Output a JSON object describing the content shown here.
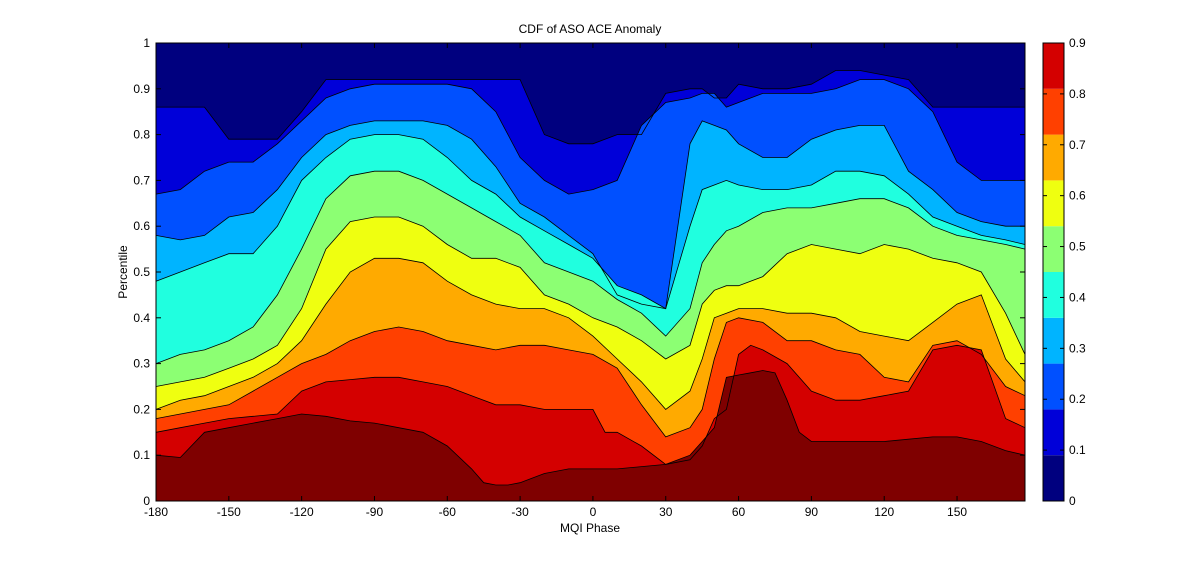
{
  "chart_data": {
    "type": "contourf",
    "title": "CDF of ASO ACE Anomaly",
    "xlabel": "MQI Phase",
    "ylabel": "Percentile",
    "xlim": [
      -180,
      178
    ],
    "ylim": [
      0,
      1
    ],
    "x_ticks": [
      "-180",
      "-150",
      "-120",
      "-90",
      "-60",
      "-30",
      "0",
      "30",
      "60",
      "90",
      "120",
      "150"
    ],
    "x_tick_values": [
      -180,
      -150,
      -120,
      -90,
      -60,
      -30,
      0,
      30,
      60,
      90,
      120,
      150
    ],
    "y_ticks": [
      "0",
      "0.1",
      "0.2",
      "0.3",
      "0.4",
      "0.5",
      "0.6",
      "0.7",
      "0.8",
      "0.9",
      "1"
    ],
    "y_tick_values": [
      0,
      0.1,
      0.2,
      0.3,
      0.4,
      0.5,
      0.6,
      0.7,
      0.8,
      0.9,
      1
    ],
    "colorbar": {
      "ticks": [
        "0",
        "0.1",
        "0.2",
        "0.3",
        "0.4",
        "0.5",
        "0.6",
        "0.7",
        "0.8",
        "0.9"
      ],
      "tick_values": [
        0,
        0.1,
        0.2,
        0.3,
        0.4,
        0.5,
        0.6,
        0.7,
        0.8,
        0.9
      ],
      "range": [
        0,
        0.9
      ],
      "colormap": "jet",
      "position": "right"
    },
    "levels": [
      {
        "value": 0.0,
        "color": "#00007f"
      },
      {
        "value": 0.1,
        "color": "#0000d9"
      },
      {
        "value": 0.2,
        "color": "#0050ff"
      },
      {
        "value": 0.3,
        "color": "#00b4ff"
      },
      {
        "value": 0.4,
        "color": "#20ffdf"
      },
      {
        "value": 0.5,
        "color": "#8cff73"
      },
      {
        "value": 0.6,
        "color": "#efff10"
      },
      {
        "value": 0.7,
        "color": "#ffaa00"
      },
      {
        "value": 0.8,
        "color": "#ff4000"
      },
      {
        "value": 0.9,
        "color": "#d40000"
      },
      {
        "value": 1.0,
        "color": "#7f0000"
      }
    ],
    "contours": [
      {
        "level": 0.1,
        "x": [
          -180,
          -170,
          -160,
          -150,
          -140,
          -130,
          -120,
          -110,
          -100,
          -90,
          -80,
          -70,
          -60,
          -50,
          -45,
          -40,
          -35,
          -30,
          -25,
          -20,
          -10,
          0,
          10,
          20,
          30,
          40,
          45,
          50,
          55,
          60,
          65,
          70,
          75,
          80,
          85,
          90,
          100,
          110,
          120,
          130,
          140,
          150,
          160,
          170,
          178
        ],
        "y": [
          0.1,
          0.095,
          0.15,
          0.16,
          0.17,
          0.18,
          0.19,
          0.185,
          0.175,
          0.17,
          0.16,
          0.15,
          0.12,
          0.07,
          0.04,
          0.035,
          0.035,
          0.04,
          0.05,
          0.06,
          0.07,
          0.07,
          0.07,
          0.075,
          0.08,
          0.1,
          0.13,
          0.16,
          0.27,
          0.275,
          0.28,
          0.285,
          0.28,
          0.22,
          0.15,
          0.13,
          0.13,
          0.13,
          0.13,
          0.135,
          0.14,
          0.14,
          0.13,
          0.11,
          0.1
        ]
      },
      {
        "level": 0.2,
        "x": [
          -180,
          -170,
          -160,
          -150,
          -140,
          -130,
          -120,
          -110,
          -100,
          -90,
          -80,
          -70,
          -60,
          -50,
          -40,
          -30,
          -20,
          -10,
          0,
          5,
          10,
          20,
          30,
          40,
          45,
          50,
          55,
          60,
          65,
          70,
          80,
          90,
          100,
          110,
          120,
          130,
          140,
          150,
          160,
          170,
          178
        ],
        "y": [
          0.15,
          0.16,
          0.17,
          0.18,
          0.185,
          0.19,
          0.24,
          0.26,
          0.265,
          0.27,
          0.27,
          0.26,
          0.25,
          0.23,
          0.21,
          0.21,
          0.2,
          0.2,
          0.2,
          0.15,
          0.15,
          0.12,
          0.08,
          0.09,
          0.12,
          0.18,
          0.2,
          0.32,
          0.34,
          0.33,
          0.3,
          0.24,
          0.22,
          0.22,
          0.23,
          0.24,
          0.33,
          0.34,
          0.33,
          0.18,
          0.16
        ]
      },
      {
        "level": 0.3,
        "x": [
          -180,
          -170,
          -160,
          -150,
          -140,
          -130,
          -120,
          -110,
          -100,
          -90,
          -80,
          -70,
          -60,
          -50,
          -40,
          -30,
          -20,
          -10,
          0,
          10,
          20,
          30,
          40,
          45,
          50,
          55,
          60,
          70,
          80,
          90,
          100,
          110,
          120,
          130,
          140,
          150,
          160,
          170,
          178
        ],
        "y": [
          0.18,
          0.19,
          0.2,
          0.21,
          0.24,
          0.27,
          0.3,
          0.32,
          0.35,
          0.37,
          0.38,
          0.37,
          0.35,
          0.34,
          0.33,
          0.34,
          0.34,
          0.33,
          0.32,
          0.29,
          0.21,
          0.14,
          0.16,
          0.2,
          0.31,
          0.39,
          0.4,
          0.39,
          0.35,
          0.35,
          0.33,
          0.32,
          0.27,
          0.26,
          0.34,
          0.35,
          0.32,
          0.25,
          0.23
        ]
      },
      {
        "level": 0.4,
        "x": [
          -180,
          -170,
          -160,
          -150,
          -140,
          -130,
          -120,
          -110,
          -100,
          -90,
          -80,
          -70,
          -60,
          -50,
          -40,
          -30,
          -20,
          -10,
          0,
          10,
          20,
          30,
          40,
          45,
          50,
          55,
          60,
          70,
          80,
          90,
          100,
          110,
          120,
          130,
          140,
          150,
          160,
          170,
          178
        ],
        "y": [
          0.2,
          0.22,
          0.23,
          0.25,
          0.27,
          0.3,
          0.35,
          0.43,
          0.5,
          0.53,
          0.53,
          0.52,
          0.48,
          0.45,
          0.43,
          0.42,
          0.42,
          0.4,
          0.36,
          0.31,
          0.26,
          0.2,
          0.24,
          0.31,
          0.4,
          0.41,
          0.42,
          0.42,
          0.41,
          0.41,
          0.4,
          0.37,
          0.36,
          0.35,
          0.39,
          0.43,
          0.45,
          0.31,
          0.26
        ]
      },
      {
        "level": 0.5,
        "x": [
          -180,
          -170,
          -160,
          -150,
          -140,
          -130,
          -120,
          -110,
          -100,
          -90,
          -80,
          -70,
          -60,
          -50,
          -40,
          -30,
          -20,
          -10,
          0,
          10,
          20,
          30,
          40,
          45,
          50,
          55,
          60,
          70,
          80,
          90,
          100,
          110,
          120,
          130,
          140,
          150,
          160,
          170,
          178
        ],
        "y": [
          0.25,
          0.26,
          0.27,
          0.29,
          0.31,
          0.34,
          0.42,
          0.55,
          0.61,
          0.62,
          0.62,
          0.6,
          0.56,
          0.53,
          0.53,
          0.51,
          0.45,
          0.43,
          0.4,
          0.38,
          0.35,
          0.31,
          0.34,
          0.43,
          0.46,
          0.47,
          0.47,
          0.49,
          0.54,
          0.56,
          0.55,
          0.54,
          0.56,
          0.55,
          0.53,
          0.52,
          0.5,
          0.41,
          0.32
        ]
      },
      {
        "level": 0.6,
        "x": [
          -180,
          -170,
          -160,
          -150,
          -140,
          -130,
          -120,
          -110,
          -100,
          -90,
          -80,
          -70,
          -60,
          -50,
          -40,
          -30,
          -20,
          -10,
          0,
          10,
          20,
          30,
          40,
          45,
          50,
          55,
          60,
          70,
          80,
          90,
          100,
          110,
          120,
          130,
          140,
          150,
          160,
          170,
          178
        ],
        "y": [
          0.3,
          0.32,
          0.33,
          0.35,
          0.38,
          0.45,
          0.55,
          0.66,
          0.71,
          0.72,
          0.72,
          0.7,
          0.67,
          0.64,
          0.61,
          0.58,
          0.52,
          0.5,
          0.48,
          0.44,
          0.41,
          0.36,
          0.42,
          0.52,
          0.56,
          0.59,
          0.6,
          0.63,
          0.64,
          0.64,
          0.65,
          0.66,
          0.66,
          0.64,
          0.6,
          0.58,
          0.57,
          0.56,
          0.55
        ]
      },
      {
        "level": 0.7,
        "x": [
          -180,
          -170,
          -160,
          -150,
          -140,
          -130,
          -120,
          -110,
          -100,
          -90,
          -80,
          -70,
          -60,
          -50,
          -40,
          -30,
          -20,
          -10,
          0,
          10,
          20,
          30,
          40,
          45,
          50,
          55,
          60,
          70,
          80,
          90,
          100,
          110,
          120,
          130,
          140,
          150,
          160,
          170,
          178
        ],
        "y": [
          0.48,
          0.5,
          0.52,
          0.54,
          0.54,
          0.6,
          0.7,
          0.75,
          0.79,
          0.8,
          0.8,
          0.79,
          0.75,
          0.7,
          0.67,
          0.62,
          0.59,
          0.56,
          0.53,
          0.47,
          0.45,
          0.42,
          0.6,
          0.68,
          0.69,
          0.7,
          0.69,
          0.68,
          0.68,
          0.69,
          0.72,
          0.72,
          0.71,
          0.67,
          0.62,
          0.6,
          0.58,
          0.57,
          0.56
        ]
      },
      {
        "level": 0.8,
        "x": [
          -180,
          -170,
          -160,
          -150,
          -140,
          -130,
          -120,
          -110,
          -100,
          -90,
          -80,
          -70,
          -60,
          -50,
          -40,
          -30,
          -20,
          -10,
          0,
          10,
          20,
          30,
          40,
          45,
          50,
          55,
          60,
          70,
          80,
          90,
          100,
          110,
          120,
          130,
          140,
          150,
          160,
          170,
          178
        ],
        "y": [
          0.58,
          0.57,
          0.58,
          0.62,
          0.63,
          0.68,
          0.75,
          0.8,
          0.82,
          0.83,
          0.83,
          0.83,
          0.82,
          0.79,
          0.73,
          0.65,
          0.62,
          0.58,
          0.54,
          0.45,
          0.43,
          0.42,
          0.78,
          0.83,
          0.82,
          0.81,
          0.78,
          0.75,
          0.75,
          0.79,
          0.81,
          0.82,
          0.82,
          0.72,
          0.68,
          0.63,
          0.61,
          0.6,
          0.6
        ]
      },
      {
        "level": 0.9,
        "x": [
          -180,
          -170,
          -160,
          -150,
          -140,
          -130,
          -120,
          -110,
          -100,
          -90,
          -80,
          -70,
          -60,
          -50,
          -40,
          -30,
          -20,
          -10,
          0,
          10,
          20,
          30,
          40,
          45,
          50,
          55,
          60,
          70,
          80,
          90,
          100,
          110,
          120,
          130,
          140,
          150,
          160,
          170,
          178
        ],
        "y": [
          0.67,
          0.68,
          0.72,
          0.74,
          0.74,
          0.78,
          0.83,
          0.88,
          0.9,
          0.91,
          0.91,
          0.91,
          0.91,
          0.9,
          0.85,
          0.75,
          0.7,
          0.67,
          0.68,
          0.7,
          0.82,
          0.87,
          0.88,
          0.89,
          0.89,
          0.86,
          0.87,
          0.89,
          0.89,
          0.89,
          0.9,
          0.92,
          0.92,
          0.9,
          0.85,
          0.74,
          0.7,
          0.7,
          0.7
        ]
      },
      {
        "level": 1.0,
        "x": [
          -180,
          -170,
          -160,
          -150,
          -140,
          -130,
          -120,
          -110,
          -100,
          -90,
          -80,
          -70,
          -60,
          -50,
          -40,
          -30,
          -20,
          -10,
          0,
          10,
          20,
          30,
          40,
          45,
          50,
          55,
          60,
          70,
          80,
          90,
          100,
          110,
          120,
          130,
          140,
          150,
          160,
          170,
          178
        ],
        "y": [
          0.86,
          0.86,
          0.86,
          0.79,
          0.79,
          0.79,
          0.85,
          0.92,
          0.92,
          0.92,
          0.92,
          0.92,
          0.92,
          0.92,
          0.92,
          0.92,
          0.8,
          0.78,
          0.78,
          0.8,
          0.8,
          0.89,
          0.9,
          0.9,
          0.88,
          0.88,
          0.91,
          0.9,
          0.9,
          0.91,
          0.94,
          0.94,
          0.93,
          0.92,
          0.86,
          0.86,
          0.86,
          0.86,
          0.86
        ]
      }
    ]
  }
}
